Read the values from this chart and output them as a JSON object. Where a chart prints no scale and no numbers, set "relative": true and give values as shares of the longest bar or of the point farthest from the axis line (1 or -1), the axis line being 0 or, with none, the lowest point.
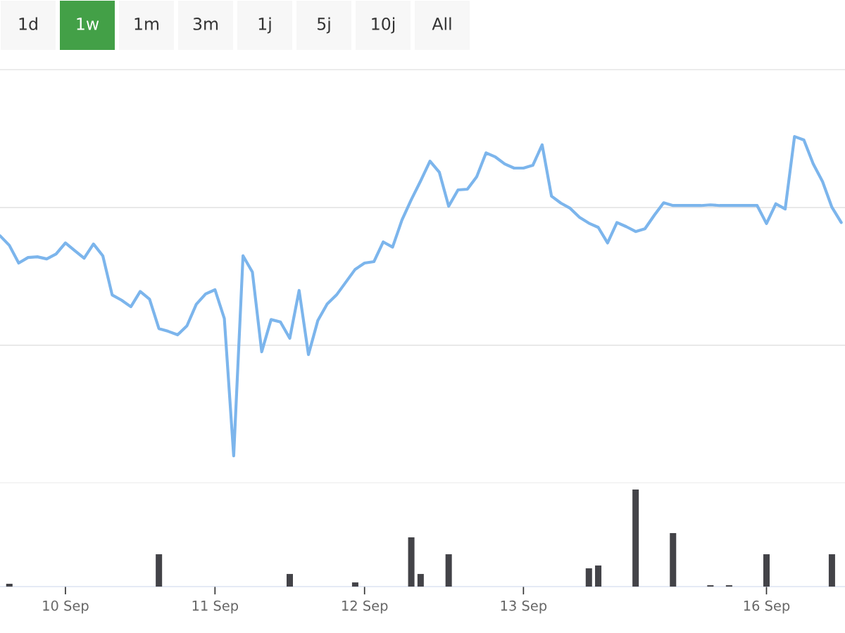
{
  "chart_data": [
    {
      "type": "other",
      "categories": [
        "1d",
        "1w",
        "1m",
        "3m",
        "1j",
        "5j",
        "10j",
        "All"
      ],
      "colors": [
        "#f7f7f7",
        "#43a047",
        "#f7f7f7",
        "#f7f7f7",
        "#f7f7f7",
        "#f7f7f7",
        "#f7f7f7",
        "#f7f7f7"
      ]
    },
    {
      "type": "line",
      "relative": true,
      "ref_lines": [
        {
          "axis": "y",
          "value": 1.193,
          "color": "#e6e6e6"
        },
        {
          "axis": "y",
          "value": 0.795,
          "color": "#e6e6e6"
        },
        {
          "axis": "y",
          "value": 0.398,
          "color": "#e6e6e6"
        },
        {
          "axis": "y",
          "value": 0,
          "color": "#e6e6e6"
        }
      ],
      "categories": [
        null,
        null,
        null,
        null,
        null,
        null,
        null,
        null,
        null,
        null,
        null,
        null,
        null,
        null,
        null,
        null,
        null,
        null,
        null,
        null,
        null,
        null,
        null,
        null,
        null,
        null,
        null,
        null,
        null,
        null,
        null,
        null,
        null,
        null,
        null,
        null,
        null,
        null,
        null,
        null,
        null,
        null,
        null,
        null,
        null,
        null,
        null,
        null,
        null,
        null,
        null,
        null,
        null,
        null,
        null,
        null,
        null,
        null,
        null,
        null,
        null,
        null,
        null,
        null,
        null,
        null,
        null,
        null,
        null,
        null,
        null,
        null,
        null,
        null,
        null,
        null,
        null,
        null,
        null,
        null,
        null,
        null,
        null,
        null,
        null,
        null,
        null,
        null,
        null,
        null,
        null
      ],
      "series": [
        {
          "color": "#7cb5ec",
          "values": [
            0.714,
            0.686,
            0.635,
            0.651,
            0.653,
            0.647,
            0.661,
            0.693,
            0.671,
            0.649,
            0.69,
            0.656,
            0.543,
            0.528,
            0.509,
            0.553,
            0.531,
            0.446,
            0.438,
            0.428,
            0.454,
            0.516,
            0.546,
            0.558,
            0.475,
            0.079,
            0.656,
            0.609,
            0.379,
            0.472,
            0.465,
            0.418,
            0.556,
            0.371,
            0.469,
            0.517,
            0.543,
            0.58,
            0.617,
            0.635,
            0.639,
            0.696,
            0.681,
            0.759,
            0.818,
            0.872,
            0.929,
            0.897,
            0.799,
            0.846,
            0.848,
            0.884,
            0.953,
            0.941,
            0.921,
            0.909,
            0.909,
            0.917,
            0.976,
            0.828,
            0.808,
            0.793,
            0.767,
            0.75,
            0.738,
            0.693,
            0.752,
            0.74,
            0.726,
            0.734,
            0.773,
            0.809,
            0.801,
            0.801,
            0.801,
            0.801,
            0.803,
            0.801,
            0.801,
            0.801,
            0.801,
            0.801,
            0.749,
            0.806,
            0.791,
            1,
            0.99,
            0.921,
            0.87,
            0.796,
            0.752
          ]
        }
      ]
    },
    {
      "type": "bar",
      "relative": true,
      "categories": [
        null,
        null,
        null,
        null,
        null,
        null,
        null,
        "10 Sep",
        null,
        null,
        null,
        null,
        null,
        null,
        null,
        null,
        null,
        null,
        null,
        null,
        null,
        null,
        null,
        "11 Sep",
        null,
        null,
        null,
        null,
        null,
        null,
        null,
        null,
        null,
        null,
        null,
        null,
        null,
        null,
        null,
        "12 Sep",
        null,
        null,
        null,
        null,
        null,
        null,
        null,
        null,
        null,
        null,
        null,
        null,
        null,
        null,
        null,
        null,
        "13 Sep",
        null,
        null,
        null,
        null,
        null,
        null,
        null,
        null,
        null,
        null,
        null,
        null,
        null,
        null,
        null,
        null,
        null,
        null,
        null,
        null,
        null,
        null,
        null,
        null,
        null,
        "16 Sep",
        null,
        null,
        null,
        null,
        null,
        null,
        null,
        null
      ],
      "series": [
        {
          "color": "#434348",
          "values": [
            null,
            0.029,
            null,
            null,
            null,
            null,
            null,
            null,
            null,
            null,
            null,
            null,
            null,
            null,
            null,
            null,
            null,
            0.333,
            null,
            null,
            null,
            null,
            null,
            null,
            null,
            null,
            null,
            null,
            null,
            null,
            null,
            0.13,
            null,
            null,
            null,
            null,
            null,
            null,
            0.043,
            null,
            null,
            null,
            null,
            null,
            0.507,
            0.13,
            null,
            null,
            0.333,
            null,
            null,
            null,
            null,
            null,
            null,
            null,
            null,
            null,
            null,
            null,
            null,
            null,
            null,
            0.188,
            0.217,
            null,
            null,
            null,
            1,
            null,
            null,
            null,
            0.551,
            null,
            null,
            null,
            0.014,
            null,
            0.014,
            null,
            null,
            null,
            0.333,
            null,
            null,
            null,
            null,
            null,
            null,
            0.333,
            null
          ]
        }
      ]
    }
  ]
}
